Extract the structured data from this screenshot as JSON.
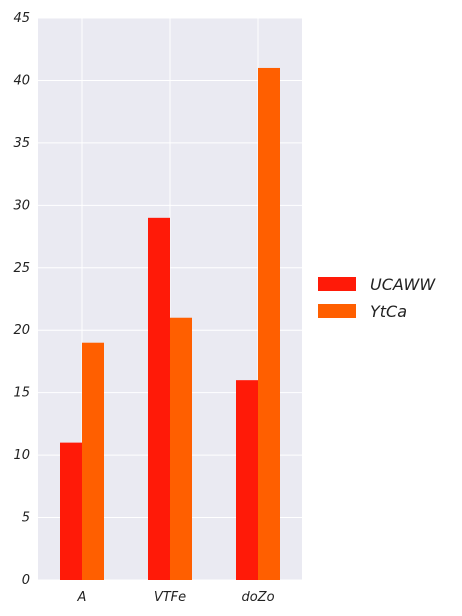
{
  "chart_data": {
    "type": "bar",
    "categories": [
      "A",
      "VTFe",
      "doZo"
    ],
    "series": [
      {
        "name": "UCAWW",
        "values": [
          11,
          29,
          16
        ],
        "color": "#ff1a08"
      },
      {
        "name": "YtCa",
        "values": [
          19,
          21,
          41
        ],
        "color": "#ff5f00"
      }
    ],
    "ylim": [
      0,
      45
    ],
    "yticks": [
      0,
      5,
      10,
      15,
      20,
      25,
      30,
      35,
      40,
      45
    ],
    "grid": true,
    "legend_position": "right",
    "background_color": "#eaeaf2",
    "grid_color": "#ffffff"
  }
}
